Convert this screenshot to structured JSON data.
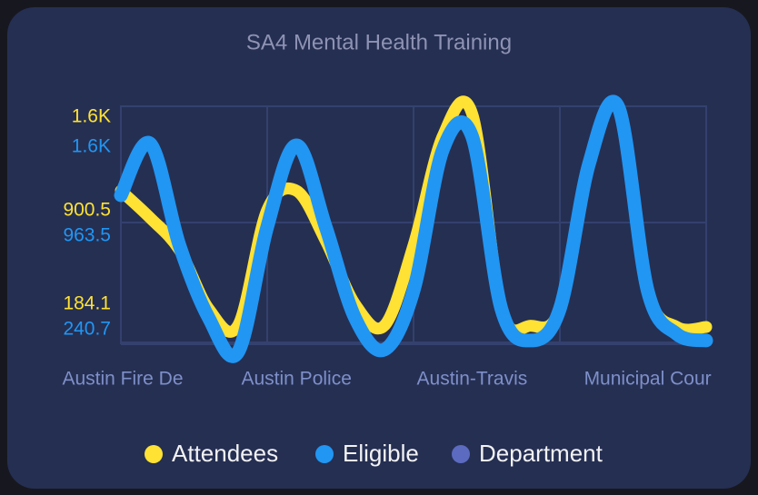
{
  "chart_data": {
    "type": "line",
    "title": "SA4 Mental Health Training",
    "categories": [
      "Austin Fire De",
      null,
      null,
      null,
      null,
      null,
      "Austin Police",
      null,
      null,
      null,
      null,
      null,
      "Austin-Travis",
      null,
      null,
      null,
      null,
      null,
      "Municipal Cour",
      null,
      null
    ],
    "series": [
      {
        "name": "Attendees",
        "color": "#ffe233",
        "axis": "y",
        "values": [
          1053,
          845,
          601,
          149,
          20,
          906,
          1053,
          670,
          184,
          20,
          636,
          1471,
          1645,
          149,
          20,
          149,
          1262,
          1679,
          288,
          10,
          10
        ]
      },
      {
        "name": "Eligible",
        "color": "#2196f3",
        "axis": "y2",
        "values": [
          1279,
          1679,
          893,
          332,
          65,
          1034,
          1665,
          1034,
          332,
          86,
          542,
          1630,
          1735,
          402,
          157,
          402,
          1525,
          1960,
          542,
          206,
          157
        ]
      }
    ],
    "legend": [
      {
        "name": "Department",
        "color": "#5c6bc0"
      }
    ],
    "ylim": [
      -115,
      1700
    ],
    "yticks": [
      {
        "value": 1617,
        "label": "1.6K"
      },
      900.5,
      184.1
    ],
    "y2lim": [
      135,
      1967
    ],
    "y2ticks": [
      {
        "value": 1650,
        "label": "1.6K"
      },
      963.5,
      240.7
    ]
  }
}
